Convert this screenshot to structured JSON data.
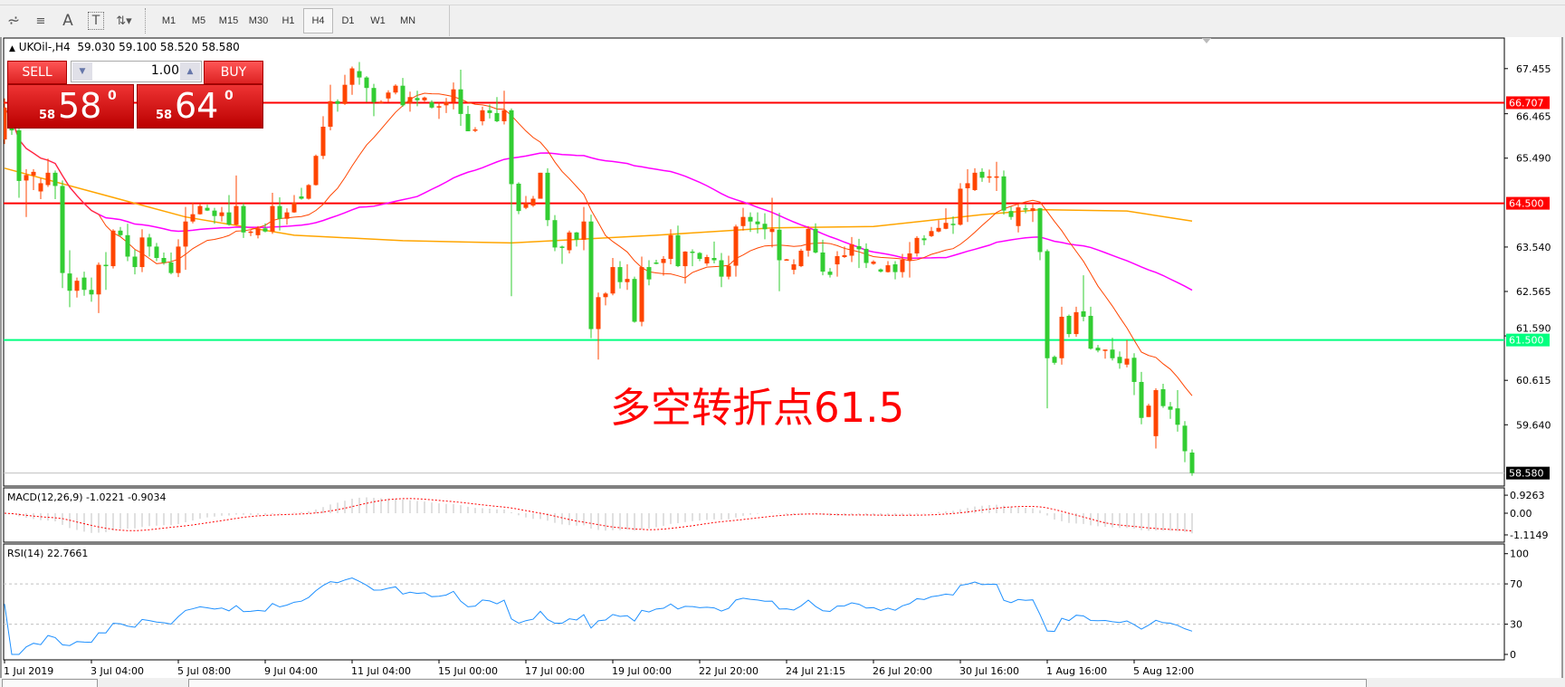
{
  "toolbar": {
    "icons": [
      "elliott-wave-icon",
      "fibonacci-icon",
      "text-icon",
      "text-label-icon",
      "arrows-icon"
    ],
    "timeframes": [
      "M1",
      "M5",
      "M15",
      "M30",
      "H1",
      "H4",
      "D1",
      "W1",
      "MN"
    ],
    "active_timeframe": "H4"
  },
  "chart": {
    "symbol_label": "UKOil-,H4",
    "ohlc_label": "59.030 59.100 58.520 58.580",
    "trade_panel": {
      "sell_label": "SELL",
      "buy_label": "BUY",
      "lot_value": "1.00",
      "sell_price_small": "58",
      "sell_price_big": "58",
      "sell_price_sup": "0",
      "buy_price_small": "58",
      "buy_price_big": "64",
      "buy_price_sup": "0"
    },
    "annotation": "多空转折点61.5",
    "colors": {
      "bull": "#ff4500",
      "bear": "#32cd32",
      "resistance": "#ff0000",
      "pivot": "#00ff7f",
      "bid": "#c0c0c0",
      "ma_fast": "#ff4500",
      "ma_mid": "#ff00ff",
      "ma_slow": "#ffa500",
      "rsi": "#1e90ff",
      "macd_hist": "#c0c0c0",
      "macd_signal": "#ff0000"
    }
  },
  "chart_data": {
    "type": "candlestick",
    "price_axis_ticks": [
      "67.455",
      "66.465",
      "65.490",
      "63.540",
      "62.565",
      "61.590",
      "60.615",
      "59.640"
    ],
    "price_axis_values": [
      67.455,
      66.465,
      65.49,
      63.54,
      62.565,
      61.59,
      60.615,
      59.64
    ],
    "horizontal_lines": [
      {
        "value": 66.707,
        "label": "66.707",
        "color": "#ff0000"
      },
      {
        "value": 64.5,
        "label": "64.500",
        "color": "#ff0000"
      },
      {
        "value": 61.5,
        "label": "61.500",
        "color": "#00ff7f"
      },
      {
        "value": 58.58,
        "label": "58.580",
        "color": "#c0c0c0",
        "kind": "bid"
      }
    ],
    "time_axis_labels": [
      "1 Jul 2019",
      "3 Jul 04:00",
      "5 Jul 08:00",
      "9 Jul 04:00",
      "11 Jul 04:00",
      "15 Jul 00:00",
      "17 Jul 00:00",
      "19 Jul 00:00",
      "22 Jul 20:00",
      "24 Jul 21:15",
      "26 Jul 20:00",
      "30 Jul 16:00",
      "1 Aug 16:00",
      "5 Aug 12:00"
    ],
    "candles_ohlc": [
      [
        65.9,
        66.8,
        65.8,
        66.6
      ],
      [
        66.6,
        66.7,
        66.0,
        66.1
      ],
      [
        66.1,
        66.18,
        64.62,
        64.99
      ],
      [
        65.0,
        65.25,
        64.2,
        65.12
      ],
      [
        65.11,
        65.25,
        64.79,
        65.19
      ],
      [
        64.76,
        65.05,
        64.59,
        64.94
      ],
      [
        64.9,
        65.48,
        64.86,
        65.17
      ],
      [
        65.17,
        65.22,
        64.59,
        64.88
      ],
      [
        64.88,
        65.0,
        62.64,
        62.97
      ],
      [
        62.96,
        63.47,
        62.22,
        62.58
      ],
      [
        62.58,
        62.87,
        62.43,
        62.8
      ],
      [
        62.87,
        63.0,
        62.47,
        62.6
      ],
      [
        62.6,
        62.87,
        62.34,
        62.5
      ],
      [
        62.5,
        63.2,
        62.09,
        63.15
      ],
      [
        63.15,
        63.43,
        62.6,
        63.12
      ],
      [
        63.12,
        63.93,
        63.07,
        63.9
      ],
      [
        63.9,
        63.98,
        63.76,
        63.8
      ],
      [
        63.8,
        64.05,
        63.23,
        63.33
      ],
      [
        63.33,
        63.48,
        62.94,
        63.1
      ],
      [
        63.1,
        63.93,
        62.99,
        63.75
      ],
      [
        63.75,
        63.83,
        63.33,
        63.55
      ],
      [
        63.55,
        63.63,
        63.23,
        63.3
      ],
      [
        63.3,
        63.42,
        63.15,
        63.2
      ],
      [
        63.2,
        63.42,
        62.94,
        62.97
      ],
      [
        62.97,
        63.71,
        62.88,
        63.55
      ],
      [
        63.55,
        64.42,
        63.04,
        64.1
      ],
      [
        64.1,
        64.52,
        64.06,
        64.26
      ],
      [
        64.26,
        64.49,
        64.25,
        64.44
      ],
      [
        64.4,
        64.47,
        64.33,
        64.34
      ],
      [
        64.34,
        64.4,
        64.05,
        64.22
      ],
      [
        64.22,
        64.42,
        64.1,
        64.3
      ],
      [
        64.3,
        64.68,
        64.01,
        64.03
      ],
      [
        64.03,
        65.11,
        64.01,
        64.44
      ],
      [
        64.44,
        64.5,
        63.74,
        63.86
      ],
      [
        63.86,
        63.91,
        63.78,
        63.88
      ],
      [
        63.8,
        64.0,
        63.73,
        63.95
      ],
      [
        63.95,
        64.06,
        63.86,
        63.88
      ],
      [
        63.88,
        64.73,
        63.83,
        64.44
      ],
      [
        64.44,
        64.63,
        63.9,
        64.16
      ],
      [
        64.16,
        64.39,
        64.03,
        64.3
      ],
      [
        64.3,
        64.68,
        64.29,
        64.52
      ],
      [
        64.65,
        64.84,
        64.58,
        64.6
      ],
      [
        64.6,
        64.92,
        64.58,
        64.9
      ],
      [
        64.9,
        65.57,
        64.89,
        65.54
      ],
      [
        65.54,
        66.41,
        65.47,
        66.18
      ],
      [
        66.18,
        67.1,
        66.1,
        66.74
      ],
      [
        66.74,
        66.78,
        66.51,
        66.68
      ],
      [
        66.68,
        67.32,
        66.66,
        67.1
      ],
      [
        67.1,
        67.5,
        66.88,
        67.46
      ],
      [
        67.4,
        67.6,
        67.1,
        67.26
      ],
      [
        67.26,
        67.29,
        66.72,
        67.03
      ],
      [
        67.03,
        67.12,
        66.41,
        66.72
      ],
      [
        66.72,
        66.76,
        66.7,
        66.73
      ],
      [
        66.8,
        66.98,
        66.72,
        66.93
      ],
      [
        66.93,
        67.11,
        66.89,
        67.08
      ],
      [
        67.08,
        67.25,
        66.62,
        66.65
      ],
      [
        66.7,
        66.95,
        66.51,
        66.83
      ],
      [
        66.81,
        66.97,
        66.63,
        66.76
      ],
      [
        66.76,
        66.84,
        66.73,
        66.82
      ],
      [
        66.72,
        66.76,
        66.58,
        66.6
      ],
      [
        66.6,
        66.71,
        66.35,
        66.63
      ],
      [
        66.65,
        66.81,
        66.48,
        66.72
      ],
      [
        66.72,
        67.15,
        66.56,
        67.0
      ],
      [
        67.0,
        67.43,
        66.2,
        66.46
      ],
      [
        66.46,
        66.64,
        66.08,
        66.08
      ],
      [
        66.1,
        66.17,
        66.06,
        66.12
      ],
      [
        66.3,
        66.62,
        66.21,
        66.54
      ],
      [
        66.54,
        66.67,
        66.36,
        66.48
      ],
      [
        66.48,
        66.83,
        66.28,
        66.3
      ],
      [
        66.3,
        66.97,
        66.23,
        66.54
      ],
      [
        66.54,
        66.58,
        62.46,
        64.92
      ],
      [
        64.93,
        64.96,
        64.26,
        64.33
      ],
      [
        64.4,
        64.66,
        64.37,
        64.5
      ],
      [
        64.45,
        64.66,
        64.42,
        64.6
      ],
      [
        64.6,
        65.17,
        64.6,
        65.17
      ],
      [
        65.17,
        65.27,
        64.0,
        64.13
      ],
      [
        64.13,
        64.24,
        63.45,
        63.53
      ],
      [
        63.55,
        63.57,
        63.17,
        63.53
      ],
      [
        63.47,
        63.9,
        63.4,
        63.86
      ],
      [
        63.86,
        63.87,
        63.55,
        63.7
      ],
      [
        63.7,
        64.42,
        63.47,
        64.1
      ],
      [
        64.1,
        64.25,
        61.54,
        61.74
      ],
      [
        61.74,
        62.54,
        61.07,
        62.44
      ],
      [
        62.44,
        62.55,
        62.26,
        62.52
      ],
      [
        62.52,
        63.3,
        62.48,
        63.1
      ],
      [
        63.1,
        63.23,
        62.63,
        62.77
      ],
      [
        62.77,
        63.16,
        62.6,
        62.84
      ],
      [
        62.84,
        62.89,
        61.88,
        61.9
      ],
      [
        61.9,
        63.33,
        61.8,
        63.1
      ],
      [
        63.1,
        63.25,
        62.7,
        62.83
      ],
      [
        63.2,
        63.26,
        63.16,
        63.19
      ],
      [
        63.19,
        63.34,
        62.91,
        63.28
      ],
      [
        63.28,
        63.93,
        63.16,
        63.8
      ],
      [
        63.8,
        64.01,
        63.1,
        63.12
      ],
      [
        63.12,
        63.45,
        62.74,
        63.44
      ],
      [
        63.44,
        63.49,
        63.12,
        63.41
      ],
      [
        63.41,
        63.43,
        63.23,
        63.28
      ],
      [
        63.18,
        63.37,
        63.13,
        63.32
      ],
      [
        63.3,
        63.66,
        63.18,
        63.25
      ],
      [
        63.25,
        63.41,
        62.66,
        62.89
      ],
      [
        62.89,
        63.35,
        62.83,
        63.13
      ],
      [
        63.13,
        64.03,
        62.89,
        63.99
      ],
      [
        64.0,
        64.4,
        63.9,
        64.2
      ],
      [
        64.2,
        64.3,
        63.87,
        64.1
      ],
      [
        64.1,
        64.3,
        63.84,
        64.04
      ],
      [
        64.05,
        64.28,
        63.71,
        63.93
      ],
      [
        63.87,
        64.62,
        63.53,
        63.94
      ],
      [
        63.92,
        64.29,
        62.57,
        63.25
      ],
      [
        63.27,
        63.28,
        63.26,
        63.27
      ],
      [
        63.04,
        63.27,
        62.94,
        63.16
      ],
      [
        63.12,
        63.5,
        63.1,
        63.46
      ],
      [
        63.46,
        64.0,
        63.33,
        63.94
      ],
      [
        63.94,
        64.06,
        63.4,
        63.42
      ],
      [
        63.42,
        63.7,
        62.92,
        63.0
      ],
      [
        63.0,
        63.08,
        62.87,
        62.93
      ],
      [
        63.16,
        63.45,
        62.89,
        63.34
      ],
      [
        63.32,
        63.55,
        63.3,
        63.36
      ],
      [
        63.35,
        63.76,
        63.21,
        63.6
      ],
      [
        63.56,
        63.72,
        63.08,
        63.49
      ],
      [
        63.5,
        63.62,
        63.08,
        63.19
      ],
      [
        63.17,
        63.25,
        63.15,
        63.22
      ],
      [
        63.05,
        63.07,
        62.98,
        63.0
      ],
      [
        62.99,
        63.23,
        62.98,
        63.14
      ],
      [
        63.16,
        63.23,
        62.83,
        62.99
      ],
      [
        62.99,
        63.39,
        62.87,
        63.26
      ],
      [
        63.25,
        63.65,
        62.87,
        63.4
      ],
      [
        63.4,
        63.78,
        63.33,
        63.74
      ],
      [
        63.73,
        63.8,
        63.58,
        63.69
      ],
      [
        63.78,
        63.98,
        63.76,
        63.89
      ],
      [
        63.88,
        64.13,
        63.86,
        63.96
      ],
      [
        63.94,
        64.39,
        63.93,
        64.07
      ],
      [
        64.05,
        64.21,
        63.83,
        64.03
      ],
      [
        64.03,
        64.94,
        64.01,
        64.82
      ],
      [
        64.83,
        65.25,
        64.09,
        64.94
      ],
      [
        64.79,
        65.27,
        64.77,
        65.17
      ],
      [
        65.19,
        65.27,
        64.97,
        65.06
      ],
      [
        65.07,
        65.24,
        64.95,
        65.09
      ],
      [
        65.08,
        65.41,
        64.77,
        65.09
      ],
      [
        65.09,
        65.22,
        64.25,
        64.34
      ],
      [
        64.33,
        64.43,
        64.14,
        64.2
      ],
      [
        64.0,
        64.49,
        63.86,
        64.41
      ],
      [
        64.39,
        64.47,
        64.28,
        64.36
      ],
      [
        64.33,
        64.5,
        64.09,
        64.39
      ],
      [
        64.39,
        64.4,
        63.25,
        63.43
      ],
      [
        63.45,
        63.49,
        60.0,
        61.1
      ],
      [
        61.13,
        61.16,
        60.96,
        61.0
      ],
      [
        61.1,
        62.23,
        60.96,
        62.01
      ],
      [
        62.03,
        62.06,
        61.56,
        61.63
      ],
      [
        61.63,
        62.23,
        61.57,
        62.11
      ],
      [
        62.13,
        62.92,
        61.91,
        62.01
      ],
      [
        62.03,
        62.23,
        61.29,
        61.31
      ],
      [
        61.33,
        61.39,
        61.23,
        61.27
      ],
      [
        61.27,
        61.29,
        61.09,
        61.29
      ],
      [
        61.29,
        61.55,
        61.05,
        61.1
      ],
      [
        61.13,
        61.25,
        60.87,
        60.99
      ],
      [
        60.96,
        61.5,
        60.9,
        61.09
      ],
      [
        61.11,
        61.21,
        60.29,
        60.58
      ],
      [
        60.58,
        60.8,
        59.65,
        59.79
      ],
      [
        59.81,
        60.1,
        59.81,
        60.06
      ],
      [
        59.39,
        60.44,
        59.12,
        60.4
      ],
      [
        60.42,
        60.54,
        60.01,
        60.05
      ],
      [
        60.04,
        60.14,
        59.77,
        59.97
      ],
      [
        60.0,
        60.4,
        59.49,
        59.64
      ],
      [
        59.62,
        59.72,
        58.82,
        59.06
      ],
      [
        59.03,
        59.1,
        58.52,
        58.58
      ]
    ],
    "ma_slow_anchors": [
      [
        0,
        65.27
      ],
      [
        25,
        64.2
      ],
      [
        40,
        63.8
      ],
      [
        55,
        63.68
      ],
      [
        70,
        63.63
      ],
      [
        90,
        63.8
      ],
      [
        106,
        63.96
      ],
      [
        120,
        63.99
      ],
      [
        135,
        64.25
      ],
      [
        143,
        64.36
      ],
      [
        155,
        64.33
      ],
      [
        164,
        64.11
      ]
    ],
    "macd": {
      "label": "MACD(12,26,9) -1.0221 -0.9034",
      "fast": 12,
      "slow": 26,
      "signal": 9,
      "axis_labels": [
        "0.9263",
        "0.00",
        "-1.1149"
      ],
      "axis_values": [
        0.9263,
        0,
        -1.1149
      ]
    },
    "rsi": {
      "label": "RSI(14) 22.7661",
      "period": 14,
      "axis_labels": [
        "100",
        "70",
        "30",
        "0"
      ],
      "axis_values": [
        100,
        70,
        30,
        0
      ],
      "levels": [
        70,
        30
      ]
    }
  }
}
